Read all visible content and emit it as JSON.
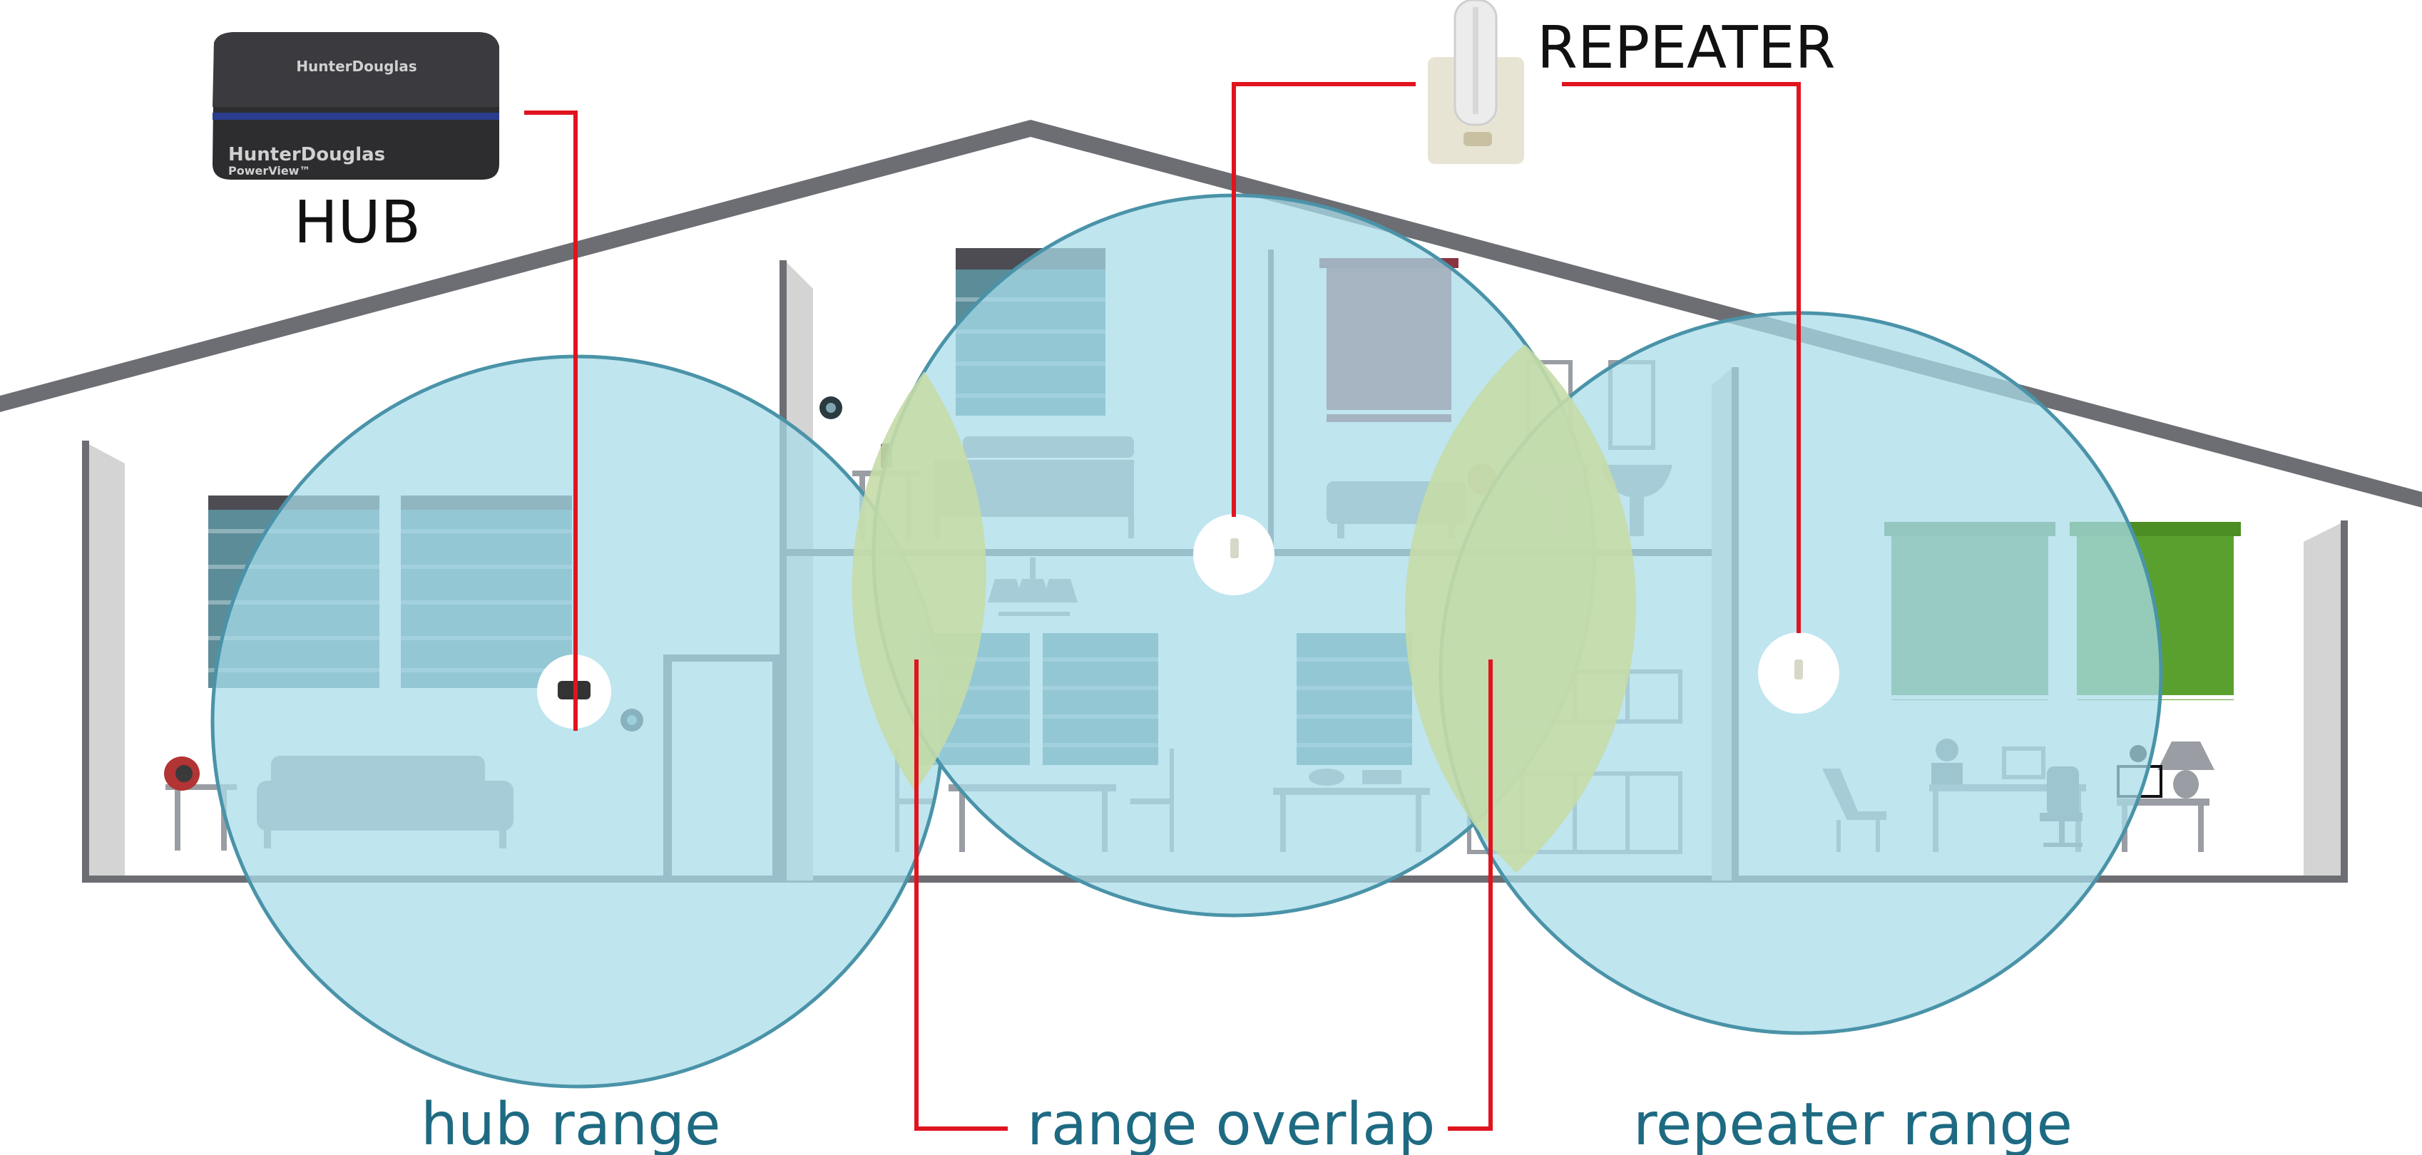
{
  "labels": {
    "hub": "HUB",
    "repeater": "REPEATER",
    "hub_range": "hub range",
    "range_overlap": "range overlap",
    "repeater_range": "repeater range"
  },
  "hub_device": {
    "brand_top": "HunterDouglas",
    "brand_front": "HunterDouglas",
    "model": "PowerView™"
  },
  "colors": {
    "coverage_fill": "#a9dce9",
    "coverage_stroke": "#4a93a8",
    "overlap_fill": "#c5dba7",
    "leader_line": "#e0141e",
    "range_text": "#1e6a82",
    "house_outline": "#6d6e73",
    "shade_blue": "#5b8c98",
    "towel_red": "#a0414e",
    "shade_green": "#6a9a5a",
    "shade_green_bright": "#5aa02e"
  },
  "icons": [
    "hub-device",
    "repeater-plug",
    "sofa",
    "bed",
    "bathtub",
    "sink",
    "chandelier",
    "dining-table",
    "kitchen-cabinets",
    "desk",
    "office-chair",
    "lounge-chair",
    "table-lamp",
    "remote-pebble"
  ]
}
